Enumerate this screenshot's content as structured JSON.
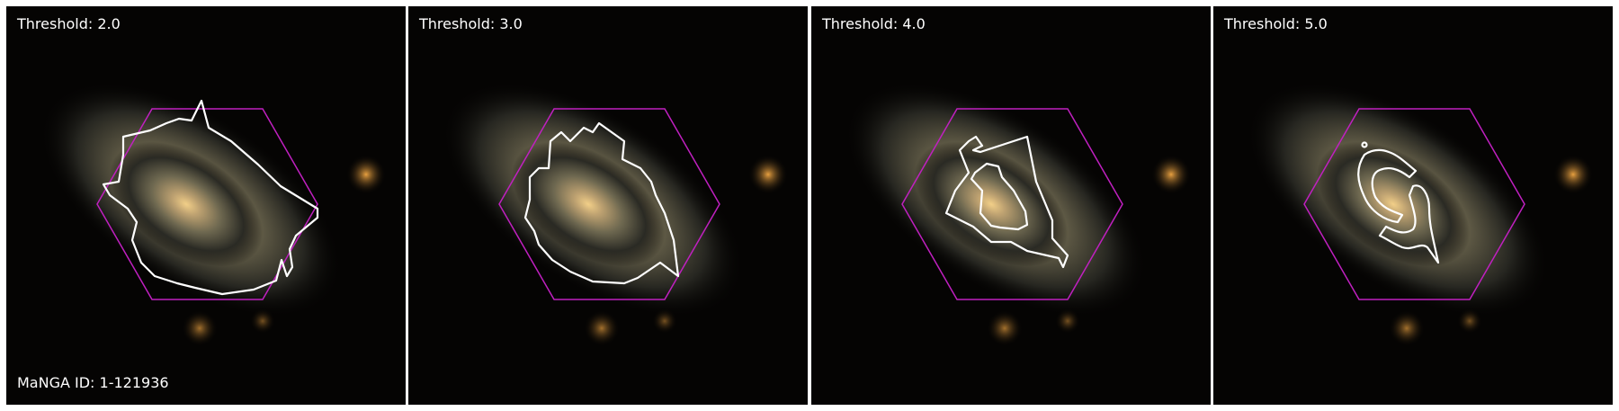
{
  "panels": [
    {
      "threshold_label": "Threshold: 2.0",
      "contour": "threshold-2-contour"
    },
    {
      "threshold_label": "Threshold: 3.0",
      "contour": "threshold-3-contour"
    },
    {
      "threshold_label": "Threshold: 4.0",
      "contour": "threshold-4-contour"
    },
    {
      "threshold_label": "Threshold: 5.0",
      "contour": "threshold-5-contour"
    }
  ],
  "manga_id_label": "MaNGA ID: 1-121936",
  "colors": {
    "hexagon": "#c020c0",
    "contour": "#ffffff",
    "galaxy_core": "#f0c878",
    "background": "#050403"
  }
}
